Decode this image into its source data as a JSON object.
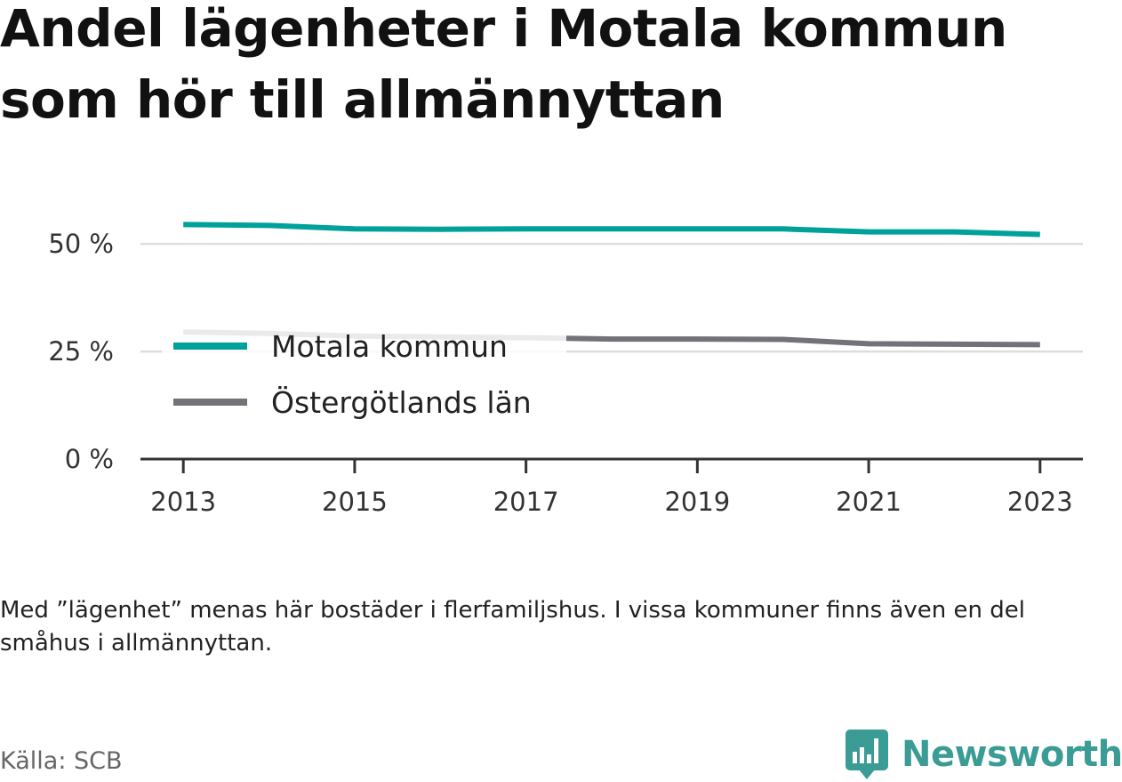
{
  "header": {
    "title": "Andel lägenheter i Motala kommun som hör till allmännyttan"
  },
  "chart_data": {
    "type": "line",
    "x": [
      2013,
      2014,
      2015,
      2016,
      2017,
      2018,
      2019,
      2020,
      2021,
      2022,
      2023
    ],
    "x_ticks": [
      "2013",
      "2015",
      "2017",
      "2019",
      "2021",
      "2023"
    ],
    "y_ticks": [
      "0 %",
      "25 %",
      "50 %"
    ],
    "y_tick_values": [
      0,
      25,
      50
    ],
    "ylim": [
      0,
      55
    ],
    "xlim": [
      2012.5,
      2023.5
    ],
    "grid": true,
    "legend_position": "inside-left",
    "series": [
      {
        "name": "Motala kommun",
        "color": "#00a19a",
        "values": [
          54.5,
          54.3,
          53.5,
          53.4,
          53.5,
          53.5,
          53.5,
          53.5,
          52.8,
          52.8,
          52.2
        ]
      },
      {
        "name": "Östergötlands län",
        "color": "#737278",
        "values": [
          29.5,
          29.2,
          28.6,
          28.4,
          28.2,
          27.9,
          27.9,
          27.8,
          26.8,
          26.7,
          26.6
        ]
      }
    ]
  },
  "footer": {
    "note": "Med ”lägenhet” menas här bostäder i flerfamiljshus. I vissa kommuner finns även en del småhus i allmännyttan.",
    "source": "Källa: SCB",
    "brand": "Newsworthy"
  },
  "colors": {
    "brand": "#3a9c95",
    "grid": "#dddddd",
    "axis": "#333333"
  },
  "icons": {
    "brand_logo": "bar-chart-speech-bubble-icon"
  }
}
